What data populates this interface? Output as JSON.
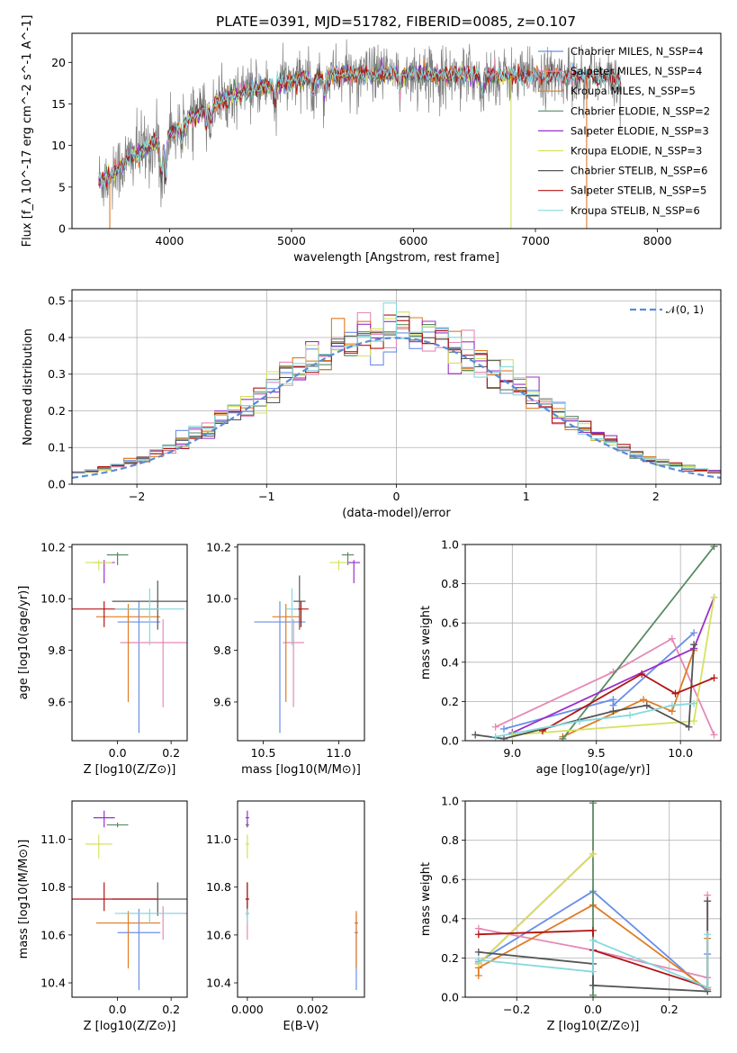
{
  "figure": {
    "title": "PLATE=0391, MJD=51782, FIBERID=0085, z=0.107"
  },
  "colors": {
    "CM": "#6a8fe6",
    "SM": "#e589b6",
    "KM": "#e07b22",
    "CE": "#5a8a64",
    "SE": "#9b30c9",
    "KE": "#d6e25c",
    "CS": "#555555",
    "SS": "#b31414",
    "KS": "#86d8de",
    "data": "#7f7f7f",
    "gauss": "#5b8bd6"
  },
  "chart_data": [
    {
      "id": "spectrum",
      "type": "line",
      "title": "PLATE=0391, MJD=51782, FIBERID=0085, z=0.107",
      "xlabel": "wavelength [Angstrom, rest frame]",
      "ylabel": "Flux [f_λ 10^-17 erg cm^-2 s^-1 A^-1]",
      "xlim": [
        3200,
        8520
      ],
      "ylim": [
        0,
        23.5
      ],
      "xticks": [
        "4000",
        "5000",
        "6000",
        "7000",
        "8000"
      ],
      "yticks": [
        "0",
        "5",
        "10",
        "15",
        "20"
      ],
      "grid": false,
      "legend_position": "top-right",
      "continuum_knots": {
        "x": [
          3420,
          3500,
          3600,
          3700,
          3800,
          3900,
          4000,
          4100,
          4200,
          4300,
          4400,
          4500,
          4600,
          4700,
          4800,
          4900,
          5000,
          5100,
          5200,
          5300,
          5400,
          5500,
          5600,
          5700,
          5800,
          5900,
          6000,
          6100,
          6200,
          6300,
          6400,
          6500,
          6600,
          6700,
          6800,
          6900,
          7000,
          7100,
          7200,
          7300,
          7400,
          7500,
          7600,
          7700,
          7800
        ],
        "y": [
          5.8,
          6.2,
          7.5,
          8.8,
          9.6,
          10.4,
          11.4,
          12.3,
          13.5,
          14.6,
          15.2,
          15.9,
          16.3,
          16.8,
          17.2,
          17.5,
          17.8,
          18.1,
          18.2,
          18.4,
          18.5,
          18.5,
          18.6,
          18.6,
          18.6,
          18.7,
          18.7,
          18.6,
          18.6,
          18.5,
          18.5,
          18.4,
          18.4,
          18.4,
          18.4,
          18.3,
          18.3,
          18.4,
          18.4,
          18.3,
          18.3,
          18.2,
          18.0,
          17.8,
          17.7
        ]
      },
      "absorption_features_A": [
        3933,
        3968,
        4101,
        4304,
        4340,
        4861,
        5175,
        5270,
        5890,
        6563
      ],
      "series": [
        {
          "key": "CM",
          "name": "Chabrier MILES, N_SSP=4",
          "x_range": [
            3420,
            7400
          ]
        },
        {
          "key": "SM",
          "name": "Salpeter MILES, N_SSP=4",
          "x_range": [
            3420,
            7400
          ]
        },
        {
          "key": "KM",
          "name": "Kroupa MILES, N_SSP=5",
          "x_range": [
            3420,
            7400
          ]
        },
        {
          "key": "CE",
          "name": "Chabrier ELODIE, N_SSP=2",
          "x_range": [
            3420,
            6800
          ]
        },
        {
          "key": "SE",
          "name": "Salpeter ELODIE, N_SSP=3",
          "x_range": [
            3420,
            6800
          ]
        },
        {
          "key": "KE",
          "name": "Kroupa ELODIE, N_SSP=3",
          "x_range": [
            3420,
            6800
          ]
        },
        {
          "key": "CS",
          "name": "Chabrier STELIB, N_SSP=6",
          "x_range": [
            3420,
            7700
          ]
        },
        {
          "key": "SS",
          "name": "Salpeter STELIB, N_SSP=5",
          "x_range": [
            3420,
            7700
          ]
        },
        {
          "key": "KS",
          "name": "Kroupa STELIB, N_SSP=6",
          "x_range": [
            3420,
            7700
          ]
        }
      ]
    },
    {
      "id": "residuals",
      "type": "histogram",
      "xlabel": "(data-model)/error",
      "ylabel": "Normed distribution",
      "xlim": [
        -2.5,
        2.5
      ],
      "ylim": [
        0,
        0.53
      ],
      "xticks": [
        "−2",
        "−1",
        "0",
        "1",
        "2"
      ],
      "yticks": [
        "0.0",
        "0.1",
        "0.2",
        "0.3",
        "0.4",
        "0.5"
      ],
      "grid": true,
      "bin_width": 0.1,
      "legend": "𝒩(0, 1)",
      "legend_position": "top-right"
    },
    {
      "id": "age_vs_Z",
      "type": "errorbar",
      "xlabel": "Z [log10(Z/Z⊙)]",
      "ylabel": "age [log10(age/yr)]",
      "xlim": [
        -0.17,
        0.26
      ],
      "ylim": [
        9.45,
        10.21
      ],
      "xticks": [
        "0.0",
        "0.2"
      ],
      "yticks": [
        "9.6",
        "9.8",
        "10.0",
        "10.2"
      ],
      "points": [
        {
          "key": "CM",
          "x": 0.08,
          "y": 9.91,
          "xerr": 0.08,
          "yerr_lo": 0.43,
          "yerr_hi": 0.08
        },
        {
          "key": "SM",
          "x": 0.17,
          "y": 9.83,
          "xerr": 0.16,
          "yerr_lo": 0.25,
          "yerr_hi": 0.09
        },
        {
          "key": "KM",
          "x": 0.04,
          "y": 9.93,
          "xerr": 0.12,
          "yerr_lo": 0.33,
          "yerr_hi": 0.05
        },
        {
          "key": "CE",
          "x": 0.0,
          "y": 10.17,
          "xerr": 0.04,
          "yerr_lo": 0.04,
          "yerr_hi": 0.01
        },
        {
          "key": "SE",
          "x": -0.05,
          "y": 10.14,
          "xerr": 0.04,
          "yerr_lo": 0.08,
          "yerr_hi": 0.01
        },
        {
          "key": "KE",
          "x": -0.07,
          "y": 10.14,
          "xerr": 0.05,
          "yerr_lo": 0.03,
          "yerr_hi": 0.01
        },
        {
          "key": "CS",
          "x": 0.15,
          "y": 9.99,
          "xerr": 0.17,
          "yerr_lo": 0.11,
          "yerr_hi": 0.08
        },
        {
          "key": "SS",
          "x": -0.05,
          "y": 9.96,
          "xerr": 0.2,
          "yerr_lo": 0.07,
          "yerr_hi": 0.03
        },
        {
          "key": "KS",
          "x": 0.12,
          "y": 9.96,
          "xerr": 0.13,
          "yerr_lo": 0.14,
          "yerr_hi": 0.08
        }
      ]
    },
    {
      "id": "age_vs_mass",
      "type": "errorbar",
      "xlabel": "mass [log10(M/M⊙)]",
      "xlim": [
        10.33,
        11.17
      ],
      "ylim": [
        9.45,
        10.21
      ],
      "xticks": [
        "10.5",
        "11.0"
      ],
      "yticks": [
        "9.6",
        "9.8",
        "10.0",
        "10.2"
      ],
      "points": [
        {
          "key": "CM",
          "x": 10.61,
          "y": 9.91,
          "xerr": 0.17,
          "yerr_lo": 0.43,
          "yerr_hi": 0.08
        },
        {
          "key": "SM",
          "x": 10.7,
          "y": 9.83,
          "xerr": 0.07,
          "yerr_lo": 0.25,
          "yerr_hi": 0.09
        },
        {
          "key": "KM",
          "x": 10.65,
          "y": 9.93,
          "xerr": 0.09,
          "yerr_lo": 0.33,
          "yerr_hi": 0.05
        },
        {
          "key": "CE",
          "x": 11.06,
          "y": 10.17,
          "xerr": 0.04,
          "yerr_lo": 0.04,
          "yerr_hi": 0.01
        },
        {
          "key": "SE",
          "x": 11.1,
          "y": 10.14,
          "xerr": 0.04,
          "yerr_lo": 0.08,
          "yerr_hi": 0.01
        },
        {
          "key": "KE",
          "x": 11.0,
          "y": 10.14,
          "xerr": 0.06,
          "yerr_lo": 0.03,
          "yerr_hi": 0.01
        },
        {
          "key": "CS",
          "x": 10.74,
          "y": 9.99,
          "xerr": 0.04,
          "yerr_lo": 0.11,
          "yerr_hi": 0.1
        },
        {
          "key": "SS",
          "x": 10.75,
          "y": 9.96,
          "xerr": 0.05,
          "yerr_lo": 0.07,
          "yerr_hi": 0.03
        },
        {
          "key": "KS",
          "x": 10.69,
          "y": 9.96,
          "xerr": 0.04,
          "yerr_lo": 0.14,
          "yerr_hi": 0.08
        }
      ]
    },
    {
      "id": "weight_vs_age",
      "type": "line",
      "xlabel": "age [log10(age/yr)]",
      "ylabel": "mass weight",
      "xlim": [
        8.72,
        10.24
      ],
      "ylim": [
        0,
        1.0
      ],
      "xticks": [
        "9.0",
        "9.5",
        "10.0"
      ],
      "yticks": [
        "0.0",
        "0.2",
        "0.4",
        "0.6",
        "0.8",
        "1.0"
      ],
      "grid": true,
      "series": [
        {
          "key": "CM",
          "x": [
            8.95,
            9.6,
            9.6,
            10.08
          ],
          "y": [
            0.06,
            0.21,
            0.18,
            0.55
          ]
        },
        {
          "key": "SM",
          "x": [
            8.9,
            9.6,
            9.95,
            10.2
          ],
          "y": [
            0.07,
            0.35,
            0.52,
            0.03
          ]
        },
        {
          "key": "KM",
          "x": [
            9.3,
            9.78,
            9.95,
            10.08,
            10.08
          ],
          "y": [
            0.02,
            0.21,
            0.15,
            0.46,
            0.47
          ]
        },
        {
          "key": "CE",
          "x": [
            9.3,
            10.2
          ],
          "y": [
            0.01,
            0.99
          ]
        },
        {
          "key": "SE",
          "x": [
            9.0,
            10.08,
            10.2
          ],
          "y": [
            0.04,
            0.47,
            0.73
          ]
        },
        {
          "key": "KE",
          "x": [
            9.0,
            10.08,
            10.2
          ],
          "y": [
            0.03,
            0.1,
            0.73
          ]
        },
        {
          "key": "CS",
          "x": [
            8.78,
            8.95,
            9.6,
            9.8,
            10.05,
            10.08
          ],
          "y": [
            0.03,
            0.01,
            0.15,
            0.18,
            0.07,
            0.49
          ]
        },
        {
          "key": "SS",
          "x": [
            9.18,
            9.77,
            9.97,
            10.2
          ],
          "y": [
            0.05,
            0.34,
            0.24,
            0.32
          ]
        },
        {
          "key": "KS",
          "x": [
            8.9,
            9.4,
            9.7,
            9.95,
            10.08
          ],
          "y": [
            0.02,
            0.1,
            0.13,
            0.18,
            0.19
          ]
        }
      ]
    },
    {
      "id": "mass_vs_Z",
      "type": "errorbar",
      "xlabel": "Z [log10(Z/Z⊙)]",
      "ylabel": "mass [log10(M/M⊙)]",
      "xlim": [
        -0.17,
        0.26
      ],
      "ylim": [
        10.34,
        11.16
      ],
      "xticks": [
        "0.0",
        "0.2"
      ],
      "yticks": [
        "10.4",
        "10.6",
        "10.8",
        "11.0"
      ],
      "points": [
        {
          "key": "CM",
          "x": 0.08,
          "y": 10.61,
          "xerr": 0.08,
          "yerr_lo": 0.24,
          "yerr_hi": 0.1
        },
        {
          "key": "SM",
          "x": 0.17,
          "y": 10.69,
          "xerr": 0.16,
          "yerr_lo": 0.11,
          "yerr_hi": 0.03
        },
        {
          "key": "KM",
          "x": 0.04,
          "y": 10.65,
          "xerr": 0.12,
          "yerr_lo": 0.19,
          "yerr_hi": 0.05
        },
        {
          "key": "CE",
          "x": 0.0,
          "y": 11.06,
          "xerr": 0.04,
          "yerr_lo": 0.01,
          "yerr_hi": 0.01
        },
        {
          "key": "SE",
          "x": -0.05,
          "y": 11.09,
          "xerr": 0.04,
          "yerr_lo": 0.04,
          "yerr_hi": 0.03
        },
        {
          "key": "KE",
          "x": -0.07,
          "y": 10.98,
          "xerr": 0.05,
          "yerr_lo": 0.06,
          "yerr_hi": 0.04
        },
        {
          "key": "CS",
          "x": 0.15,
          "y": 10.75,
          "xerr": 0.17,
          "yerr_lo": 0.07,
          "yerr_hi": 0.07
        },
        {
          "key": "SS",
          "x": -0.05,
          "y": 10.75,
          "xerr": 0.2,
          "yerr_lo": 0.05,
          "yerr_hi": 0.07
        },
        {
          "key": "KS",
          "x": 0.12,
          "y": 10.69,
          "xerr": 0.13,
          "yerr_lo": 0.04,
          "yerr_hi": 0.02
        }
      ]
    },
    {
      "id": "mass_vs_ebv",
      "type": "errorbar",
      "xlabel": "E(B-V)",
      "xlim": [
        -0.0003,
        0.0036
      ],
      "ylim": [
        10.34,
        11.16
      ],
      "xticks": [
        "0.000",
        "0.002"
      ],
      "yticks": [
        "10.4",
        "10.6",
        "10.8",
        "11.0"
      ],
      "points": [
        {
          "key": "CM",
          "x": 0.00335,
          "y": 10.61,
          "xerr": 0,
          "yerr_lo": 0.24,
          "yerr_hi": 0.08
        },
        {
          "key": "SM",
          "x": 0.0,
          "y": 10.69,
          "xerr": 0,
          "yerr_lo": 0.11,
          "yerr_hi": 0.03
        },
        {
          "key": "KM",
          "x": 0.00335,
          "y": 10.65,
          "xerr": 0,
          "yerr_lo": 0.19,
          "yerr_hi": 0.05
        },
        {
          "key": "CE",
          "x": 0.0,
          "y": 11.06,
          "xerr": 0,
          "yerr_lo": 0.01,
          "yerr_hi": 0.01
        },
        {
          "key": "SE",
          "x": 0.0,
          "y": 11.09,
          "xerr": 0,
          "yerr_lo": 0.04,
          "yerr_hi": 0.03
        },
        {
          "key": "KE",
          "x": 0.0,
          "y": 10.98,
          "xerr": 0,
          "yerr_lo": 0.06,
          "yerr_hi": 0.04
        },
        {
          "key": "CS",
          "x": 0.0,
          "y": 10.75,
          "xerr": 0,
          "yerr_lo": 0.07,
          "yerr_hi": 0.07
        },
        {
          "key": "SS",
          "x": 0.0,
          "y": 10.75,
          "xerr": 0,
          "yerr_lo": 0.05,
          "yerr_hi": 0.07
        },
        {
          "key": "KS",
          "x": 0.0,
          "y": 10.69,
          "xerr": 0,
          "yerr_lo": 0.04,
          "yerr_hi": 0.02
        }
      ]
    },
    {
      "id": "weight_vs_Z",
      "type": "line",
      "xlabel": "Z [log10(Z/Z⊙)]",
      "ylabel": "mass weight",
      "xlim": [
        -0.335,
        0.335
      ],
      "ylim": [
        0,
        1.0
      ],
      "xticks": [
        "−0.2",
        "0.0",
        "0.2"
      ],
      "yticks": [
        "0.0",
        "0.2",
        "0.4",
        "0.6",
        "0.8",
        "1.0"
      ],
      "grid": true,
      "series": [
        {
          "key": "CM",
          "x": [
            -0.3,
            0.0,
            0.3,
            0.3
          ],
          "y": [
            0.18,
            0.54,
            0.03,
            0.22
          ]
        },
        {
          "key": "SM",
          "x": [
            -0.3,
            0.0,
            0.3,
            0.3
          ],
          "y": [
            0.35,
            0.24,
            0.1,
            0.52
          ]
        },
        {
          "key": "KM",
          "x": [
            -0.3,
            -0.3,
            0.0,
            0.3,
            0.3
          ],
          "y": [
            0.11,
            0.15,
            0.47,
            0.04,
            0.3
          ]
        },
        {
          "key": "CE",
          "x": [
            0.0,
            0.0
          ],
          "y": [
            0.01,
            0.99
          ]
        },
        {
          "key": "SE",
          "x": [
            -0.3,
            0.0
          ],
          "y": [
            0.17,
            0.73
          ]
        },
        {
          "key": "KE",
          "x": [
            -0.3,
            0.0
          ],
          "y": [
            0.17,
            0.73
          ]
        },
        {
          "key": "CS",
          "x": [
            -0.3,
            0.0,
            0.0,
            0.3,
            0.3
          ],
          "y": [
            0.23,
            0.17,
            0.06,
            0.03,
            0.49
          ]
        },
        {
          "key": "SS",
          "x": [
            -0.3,
            0.0,
            0.0,
            0.3
          ],
          "y": [
            0.32,
            0.34,
            0.24,
            0.05
          ]
        },
        {
          "key": "KS",
          "x": [
            -0.3,
            0.0,
            0.0,
            0.3,
            0.3
          ],
          "y": [
            0.19,
            0.13,
            0.29,
            0.05,
            0.32
          ]
        }
      ]
    }
  ]
}
